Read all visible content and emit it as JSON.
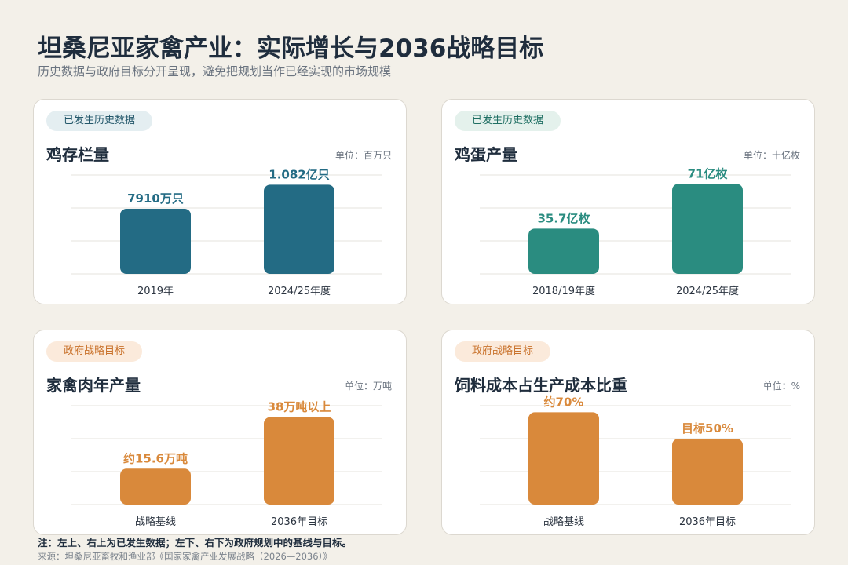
{
  "header": {
    "title": "坦桑尼亚家禽产业：实际增长与2036战略目标",
    "subtitle": "历史数据与政府目标分开呈现，避免把规划当作已经实现的市场规模"
  },
  "colors": {
    "background": "#f3f0e9",
    "historical_blue": "#236b84",
    "historical_green": "#2a8c80",
    "target_orange": "#d9893b"
  },
  "chart_data": [
    {
      "type": "bar",
      "badge": "已发生历史数据",
      "title": "鸡存栏量",
      "unit_label": "单位：百万只",
      "categories": [
        "2019年",
        "2024/25年度"
      ],
      "values": [
        79.1,
        108.2
      ],
      "data_labels": [
        "7910万只",
        "1.082亿只"
      ],
      "ylim": [
        0,
        120
      ],
      "grid": true,
      "color": "#236b84",
      "label_color": "#236b84"
    },
    {
      "type": "bar",
      "badge": "已发生历史数据",
      "title": "鸡蛋产量",
      "unit_label": "单位：十亿枚",
      "categories": [
        "2018/19年度",
        "2024/25年度"
      ],
      "values": [
        3.57,
        7.1
      ],
      "data_labels": [
        "35.7亿枚",
        "71亿枚"
      ],
      "ylim": [
        0,
        7.8
      ],
      "grid": true,
      "color": "#2a8c80",
      "label_color": "#2a8c80"
    },
    {
      "type": "bar",
      "badge": "政府战略目标",
      "title": "家禽肉年产量",
      "unit_label": "单位：万吨",
      "categories": [
        "战略基线",
        "2036年目标"
      ],
      "values": [
        15.6,
        38
      ],
      "data_labels": [
        "约15.6万吨",
        "38万吨以上"
      ],
      "ylim": [
        0,
        43
      ],
      "grid": true,
      "color": "#d9893b",
      "label_color": "#d9893b"
    },
    {
      "type": "bar",
      "badge": "政府战略目标",
      "title": "饲料成本占生产成本比重",
      "unit_label": "单位：%",
      "categories": [
        "战略基线",
        "2036年目标"
      ],
      "values": [
        70,
        50
      ],
      "data_labels": [
        "约70%",
        "目标50%"
      ],
      "ylim": [
        0,
        75
      ],
      "grid": true,
      "color": "#d9893b",
      "label_color": "#d9893b"
    }
  ],
  "footer": {
    "note": "注：左上、右上为已发生数据；左下、右下为政府规划中的基线与目标。",
    "source": "来源：坦桑尼亚畜牧和渔业部《国家家禽产业发展战略（2026—2036）》"
  }
}
